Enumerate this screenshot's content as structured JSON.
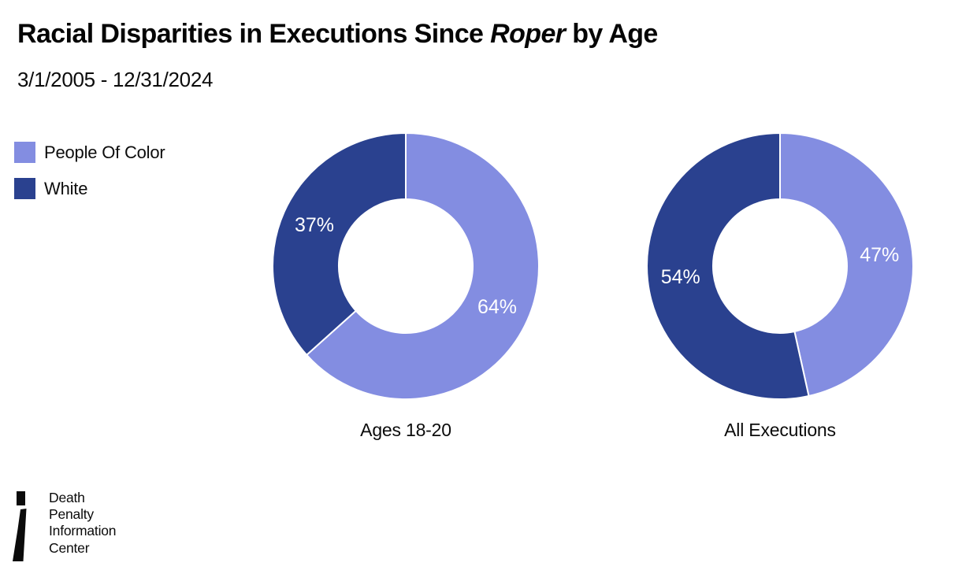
{
  "header": {
    "title_part1": "Racial Disparities in Executions Since ",
    "title_italic": "Roper",
    "title_part2": " by Age",
    "subtitle": "3/1/2005 - 12/31/2024"
  },
  "colors": {
    "people_of_color": "#838DE1",
    "white": "#2A418F",
    "slice_label_text": "#ffffff",
    "slice_separator": "#ffffff"
  },
  "legend": {
    "items": [
      {
        "label": "People Of Color",
        "color": "#838DE1"
      },
      {
        "label": "White",
        "color": "#2A418F"
      }
    ]
  },
  "chart_data": [
    {
      "type": "pie",
      "subtype": "donut",
      "title": "Ages 18-20",
      "categories": [
        "People Of Color",
        "White"
      ],
      "values": [
        64,
        37
      ],
      "labels": [
        "64%",
        "37%"
      ],
      "colors": [
        "#838DE1",
        "#2A418F"
      ],
      "start_angle_deg": 0,
      "direction": "clockwise",
      "inner_radius_ratio": 0.5,
      "legend_position": "left"
    },
    {
      "type": "pie",
      "subtype": "donut",
      "title": "All Executions",
      "categories": [
        "People Of Color",
        "White"
      ],
      "values": [
        47,
        54
      ],
      "labels": [
        "47%",
        "54%"
      ],
      "colors": [
        "#838DE1",
        "#2A418F"
      ],
      "start_angle_deg": 0,
      "direction": "clockwise",
      "inner_radius_ratio": 0.5,
      "legend_position": "left"
    }
  ],
  "footer": {
    "logo_lines": [
      "Death",
      "Penalty",
      "Information",
      "Center"
    ]
  }
}
